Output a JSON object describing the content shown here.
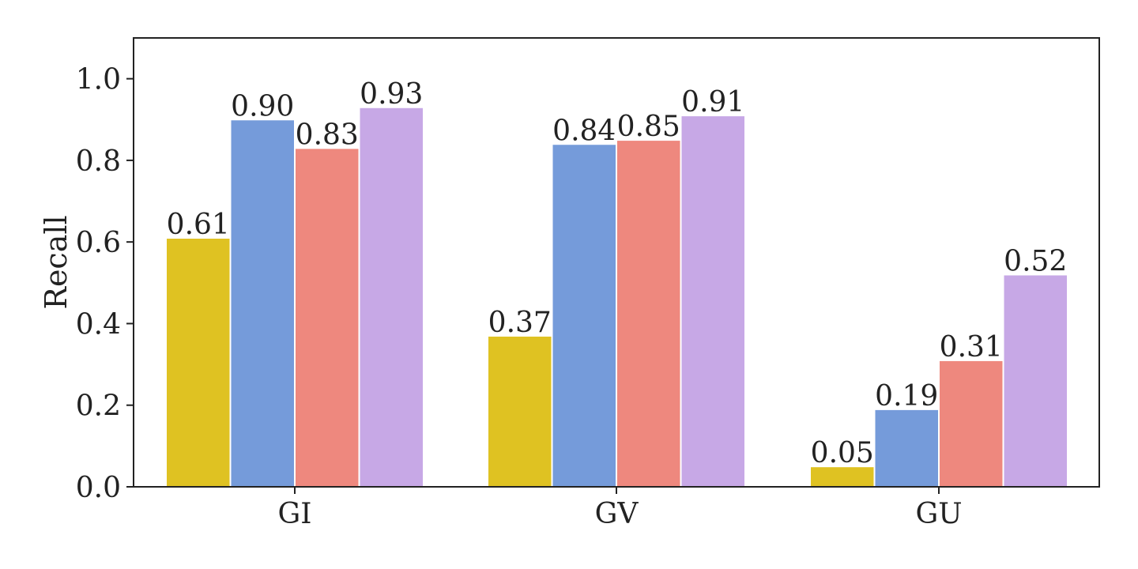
{
  "chart_data": {
    "type": "bar",
    "title": "",
    "xlabel": "",
    "ylabel": "Recall",
    "ylim": [
      0,
      1.1
    ],
    "yticks": [
      0.0,
      0.2,
      0.4,
      0.6,
      0.8,
      1.0
    ],
    "ytick_labels": [
      "0.0",
      "0.2",
      "0.4",
      "0.6",
      "0.8",
      "1.0"
    ],
    "grid": false,
    "legend": "none",
    "categories": [
      "GI",
      "GV",
      "GU"
    ],
    "series": [
      {
        "color": "#dfc222",
        "values": [
          0.61,
          0.37,
          0.05
        ],
        "labels": [
          "0.61",
          "0.37",
          "0.05"
        ]
      },
      {
        "color": "#759bda",
        "values": [
          0.9,
          0.84,
          0.19
        ],
        "labels": [
          "0.90",
          "0.84",
          "0.19"
        ]
      },
      {
        "color": "#ee887e",
        "values": [
          0.83,
          0.85,
          0.31
        ],
        "labels": [
          "0.83",
          "0.85",
          "0.31"
        ]
      },
      {
        "color": "#c7a8e6",
        "values": [
          0.93,
          0.91,
          0.52
        ],
        "labels": [
          "0.93",
          "0.91",
          "0.52"
        ]
      }
    ]
  }
}
